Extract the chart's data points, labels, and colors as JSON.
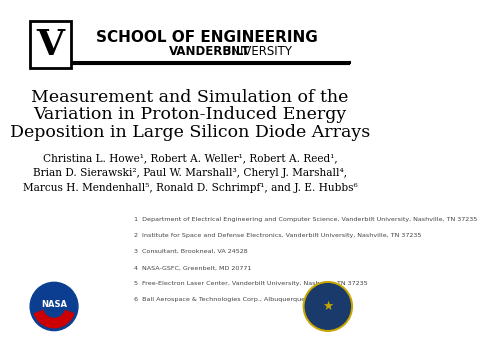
{
  "bg_color": "#ffffff",
  "title_line1": "Measurement and Simulation of the",
  "title_line2": "Variation in Proton-Induced Energy",
  "title_line3": "Deposition in Large Silicon Diode Arrays",
  "authors_line1": "Christina L. Howe¹, Robert A. Weller¹, Robert A. Reed¹,",
  "authors_line2": "Brian D. Sierawski², Paul W. Marshall³, Cheryl J. Marshall⁴,",
  "authors_line3": "Marcus H. Mendenhall⁵, Ronald D. Schrimpf¹, and J. E. Hubbs⁶",
  "affiliations": [
    "1  Department of Electrical Engineering and Computer Science, Vanderbilt University, Nashville, TN 37235",
    "2  Institute for Space and Defense Electronics, Vanderbilt University, Nashville, TN 37235",
    "3  Consultant, Brookneal, VA 24528",
    "4  NASA-GSFC, Greenbelt, MD 20771",
    "5  Free-Electron Laser Center, Vanderbilt University, Nashville, TN 37235",
    "6  Ball Aerospace & Technologies Corp., Albuquerque, NM 87117"
  ],
  "header_line1": "SCHOOL OF ENGINEERING",
  "header_line2_bold": "VANDERBILT",
  "header_line2_normal": " UNIVERSITY",
  "header_color": "#000000",
  "separator_color": "#000000",
  "text_color": "#000000",
  "affil_color": "#444444",
  "nasa_blue": "#0b3d91",
  "nasa_red": "#cc0000",
  "dod_blue": "#1a3a6b",
  "dod_gold": "#c8a800"
}
